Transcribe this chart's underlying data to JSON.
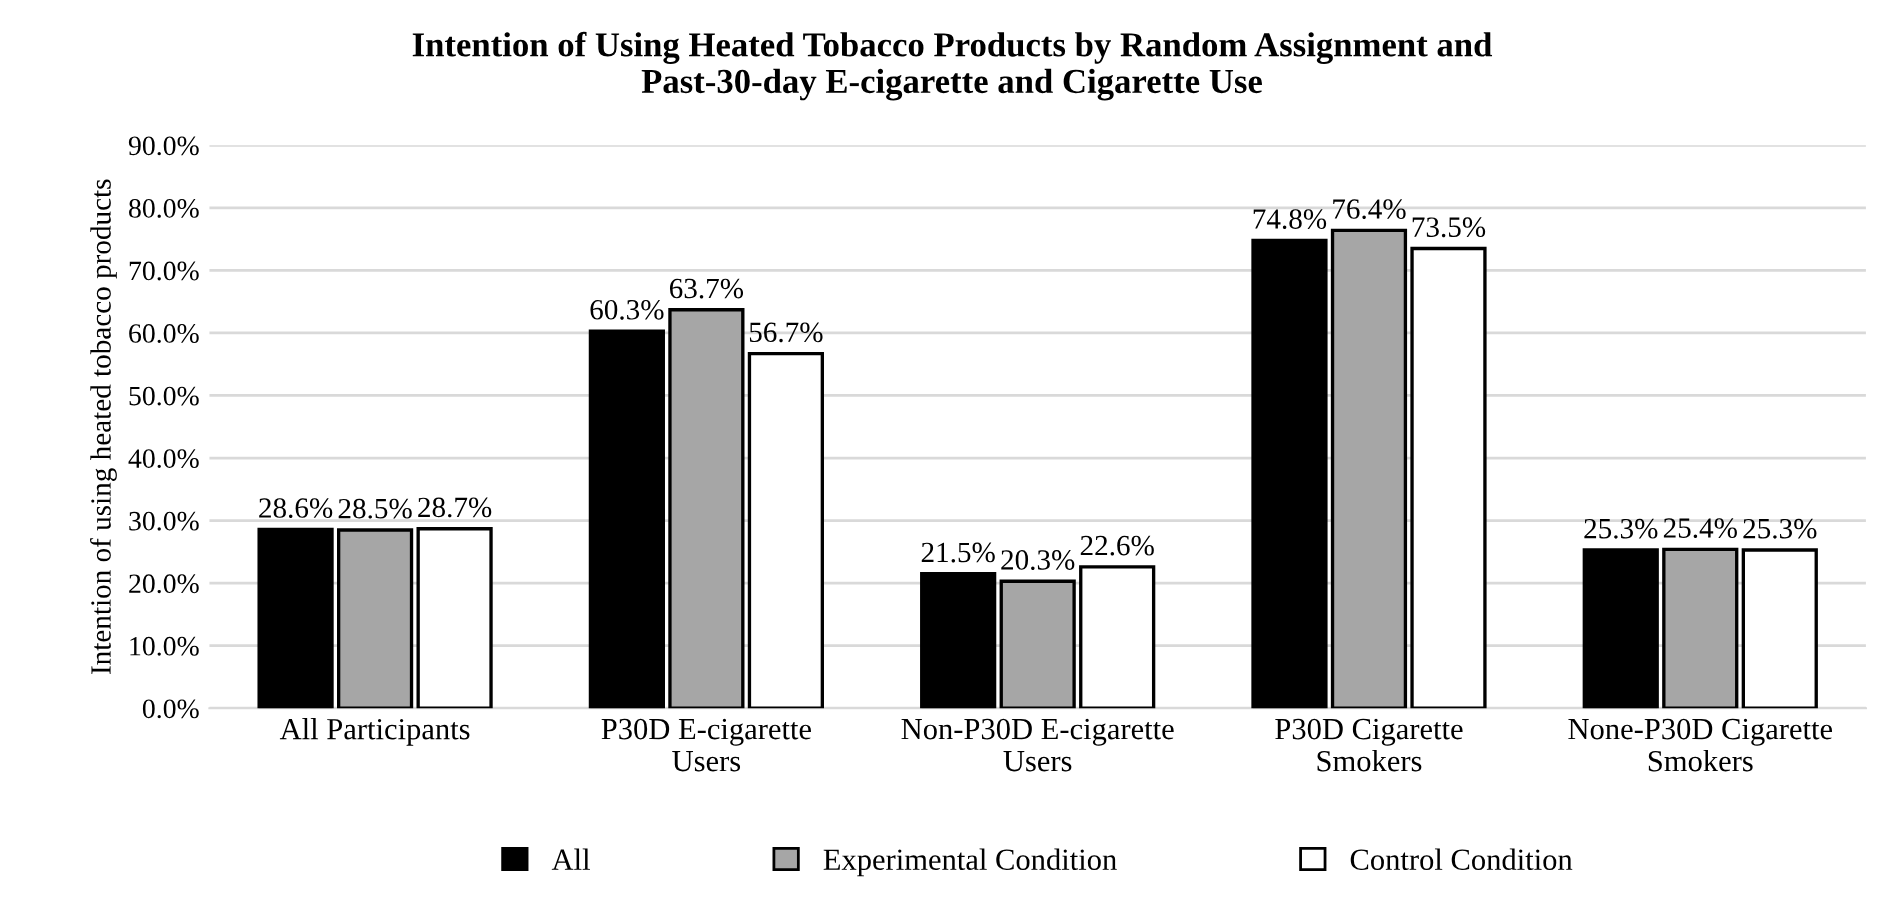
{
  "chart_data": {
    "type": "bar",
    "title": "Intention of Using Heated Tobacco Products by Random Assignment and\nPast-30-day E-cigarette and Cigarette Use",
    "ylabel": "Intention of using heated tobacco products",
    "categories": [
      "All Participants",
      "P30D E-cigarette\nUsers",
      "Non-P30D E-cigarette\nUsers",
      "P30D Cigarette\nSmokers",
      "None-P30D Cigarette\nSmokers"
    ],
    "series": [
      {
        "name": "All",
        "color": "#000000",
        "values": [
          28.6,
          60.3,
          21.5,
          74.8,
          25.3
        ],
        "value_labels": [
          "28.6%",
          "60.3%",
          "21.5%",
          "74.8%",
          "25.3%"
        ]
      },
      {
        "name": "Experimental Condition",
        "color": "#a6a6a6",
        "values": [
          28.5,
          63.7,
          20.3,
          76.4,
          25.4
        ],
        "value_labels": [
          "28.5%",
          "63.7%",
          "20.3%",
          "76.4%",
          "25.4%"
        ]
      },
      {
        "name": "Control Condition",
        "color": "#ffffff",
        "values": [
          28.7,
          56.7,
          22.6,
          73.5,
          25.3
        ],
        "value_labels": [
          "28.7%",
          "56.7%",
          "22.6%",
          "73.5%",
          "25.3%"
        ]
      }
    ],
    "ylim": [
      0,
      90
    ],
    "yticks": [
      {
        "value": 0,
        "label": "0.0%"
      },
      {
        "value": 10,
        "label": "10.0%"
      },
      {
        "value": 20,
        "label": "20.0%"
      },
      {
        "value": 30,
        "label": "30.0%"
      },
      {
        "value": 40,
        "label": "40.0%"
      },
      {
        "value": 50,
        "label": "50.0%"
      },
      {
        "value": 60,
        "label": "60.0%"
      },
      {
        "value": 70,
        "label": "70.0%"
      },
      {
        "value": 80,
        "label": "80.0%"
      },
      {
        "value": 90,
        "label": "90.0%"
      }
    ],
    "grid": "y",
    "legend": "bottom"
  }
}
